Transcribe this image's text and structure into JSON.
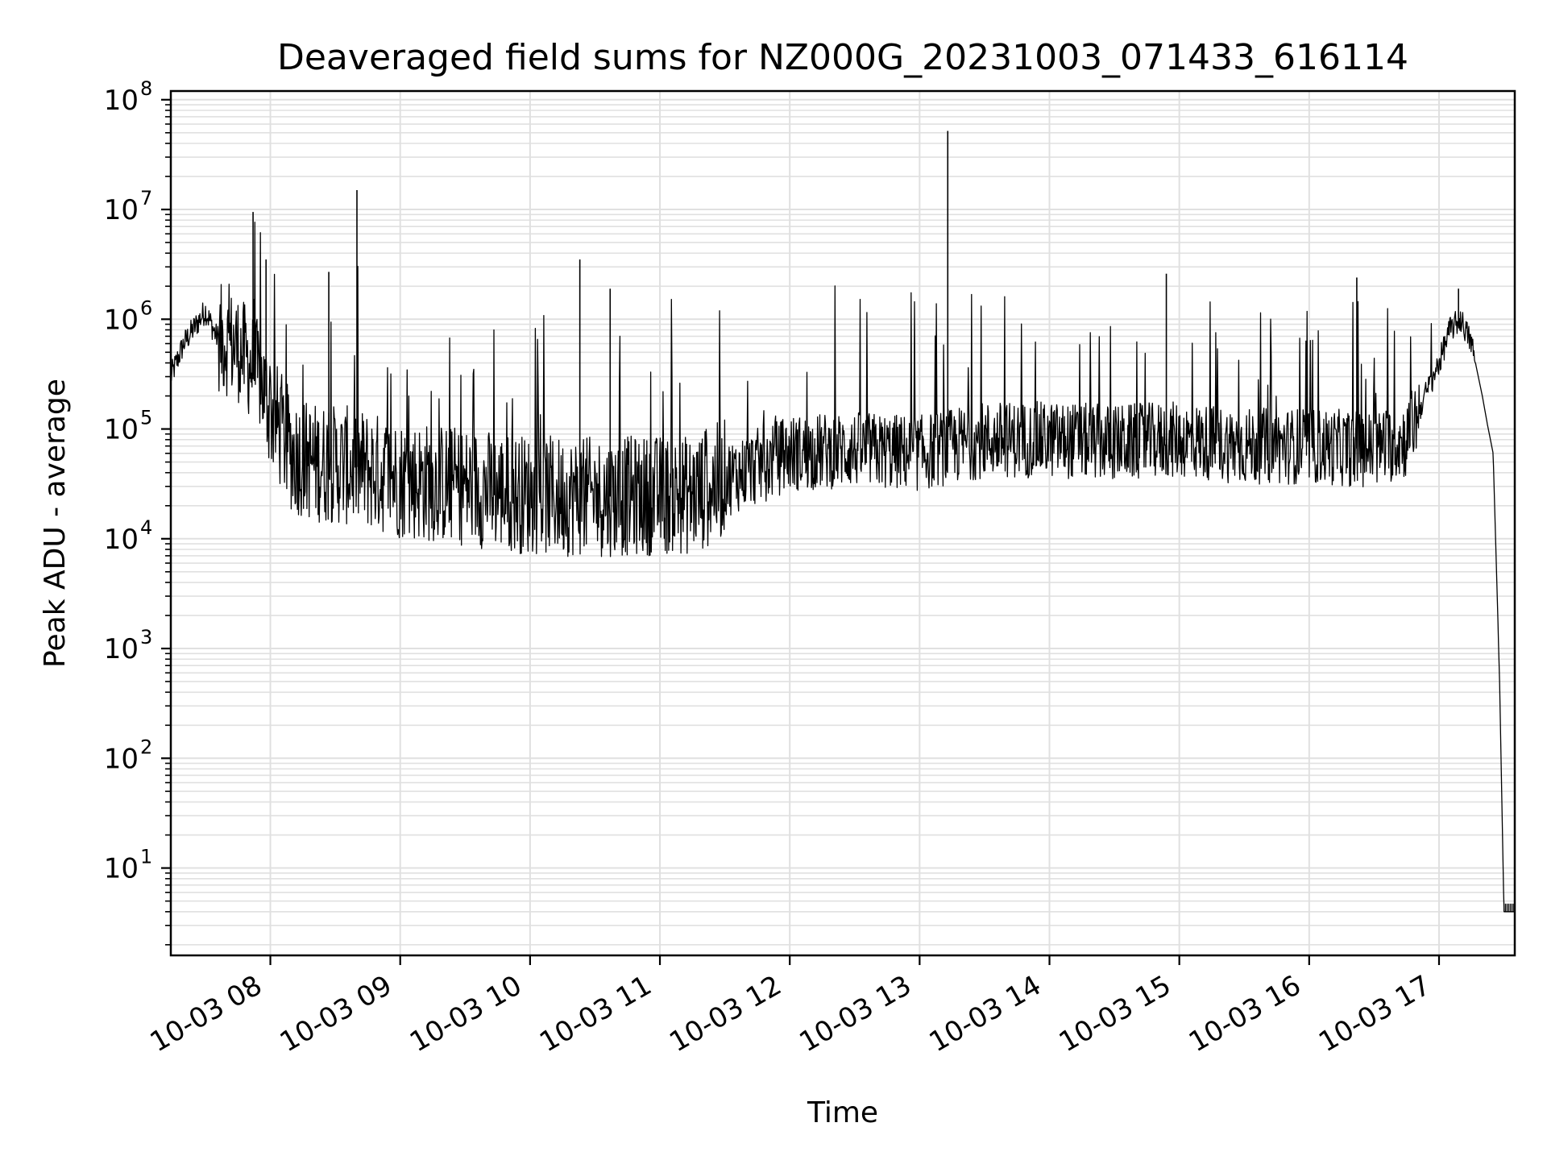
{
  "chart_data": {
    "type": "line",
    "title": "Deaveraged field sums for NZ000G_20231003_071433_616114",
    "xlabel": "Time",
    "ylabel": "Peak ADU - average",
    "yscale": "log",
    "xlim": [
      "2023-10-03 07:14",
      "2023-10-03 17:35"
    ],
    "ylim": [
      1.6,
      120000000
    ],
    "grid": true,
    "line_color": "#000000",
    "grid_color": "#e0e0e0",
    "x_tick_labels": [
      "10-03 08",
      "10-03 09",
      "10-03 10",
      "10-03 11",
      "10-03 12",
      "10-03 13",
      "10-03 14",
      "10-03 15",
      "10-03 16",
      "10-03 17"
    ],
    "x_tick_hours": [
      8,
      9,
      10,
      11,
      12,
      13,
      14,
      15,
      16,
      17
    ],
    "y_tick_labels": [
      {
        "base": "10",
        "exp": "1",
        "value": 10
      },
      {
        "base": "10",
        "exp": "2",
        "value": 100
      },
      {
        "base": "10",
        "exp": "3",
        "value": 1000
      },
      {
        "base": "10",
        "exp": "4",
        "value": 10000
      },
      {
        "base": "10",
        "exp": "5",
        "value": 100000
      },
      {
        "base": "10",
        "exp": "6",
        "value": 1000000
      },
      {
        "base": "10",
        "exp": "7",
        "value": 10000000
      },
      {
        "base": "10",
        "exp": "8",
        "value": 100000000
      }
    ],
    "series": [
      {
        "x": [
          "07:14",
          "07:20",
          "07:30",
          "07:35",
          "07:45",
          "07:55",
          "08:00",
          "08:10",
          "08:20",
          "08:40",
          "09:00",
          "09:30",
          "10:00",
          "10:30",
          "11:00",
          "11:15",
          "11:30",
          "12:00",
          "12:30",
          "13:00",
          "13:15",
          "13:30",
          "14:00",
          "14:30",
          "15:00",
          "15:30",
          "16:00",
          "16:30",
          "16:45",
          "17:00",
          "17:05",
          "17:10",
          "17:15",
          "17:20",
          "17:22",
          "17:25",
          "17:28",
          "17:30",
          "17:35"
        ],
        "y": [
          300000,
          600000,
          1200000,
          700000,
          550000,
          300000,
          150000,
          60000,
          50000,
          45000,
          35000,
          30000,
          25000,
          24000,
          25000,
          25000,
          35000,
          60000,
          65000,
          60000,
          70000,
          80000,
          80000,
          75000,
          80000,
          70000,
          70000,
          65000,
          80000,
          400000,
          800000,
          1000000,
          600000,
          200000,
          120000,
          60000,
          500,
          4,
          4
        ]
      }
    ],
    "spikes": [
      {
        "x": "07:52",
        "y": 9500000
      },
      {
        "x": "07:58",
        "y": 3500000
      },
      {
        "x": "08:40",
        "y": 15000000
      },
      {
        "x": "08:27",
        "y": 2700000
      },
      {
        "x": "10:23",
        "y": 3500000
      },
      {
        "x": "10:37",
        "y": 1900000
      },
      {
        "x": "13:13",
        "y": 52000000
      },
      {
        "x": "14:54",
        "y": 2600000
      },
      {
        "x": "16:22",
        "y": 2400000
      },
      {
        "x": "17:09",
        "y": 1900000
      }
    ]
  }
}
